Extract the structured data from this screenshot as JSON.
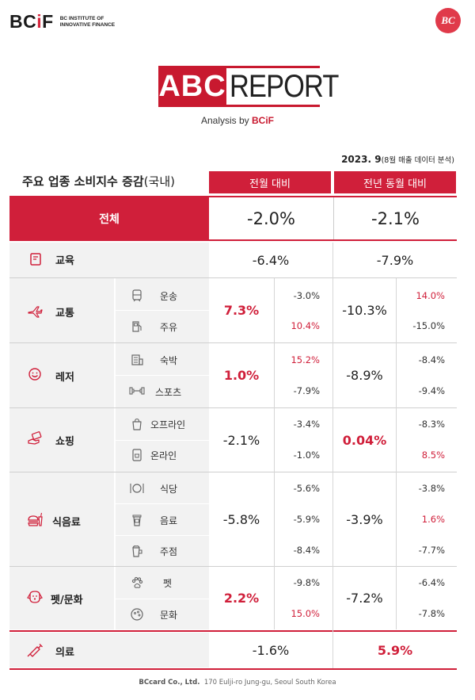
{
  "header": {
    "brand_main": "BC",
    "brand_i": "i",
    "brand_f": "F",
    "brand_sub": "BC INSTITUTE OF INNOVATIVE FINANCE",
    "bc_logo": "BC",
    "report_abc": "ABC",
    "report_word": "REPORT",
    "analysis_prefix": "Analysis by ",
    "analysis_bc": "BCiF"
  },
  "date": {
    "main": "2023. 9",
    "note": "(8월 매출 데이터 분석)"
  },
  "table": {
    "title": "주요 업종 소비지수 증감",
    "title_paren": "(국내)",
    "col1": "전월 대비",
    "col2": "전년 동월 대비",
    "total": {
      "label": "전체",
      "mom": "-2.0%",
      "yoy": "-2.1%"
    },
    "education": {
      "label": "교육",
      "mom": "-6.4%",
      "yoy": "-7.9%"
    },
    "transport": {
      "label": "교통",
      "mom": "7.3%",
      "yoy": "-10.3%",
      "subs": [
        {
          "name": "운송",
          "mom": "-3.0%",
          "yoy": "14.0%"
        },
        {
          "name": "주유",
          "mom": "10.4%",
          "yoy": "-15.0%"
        }
      ]
    },
    "leisure": {
      "label": "레저",
      "mom": "1.0%",
      "yoy": "-8.9%",
      "subs": [
        {
          "name": "숙박",
          "mom": "15.2%",
          "yoy": "-8.4%"
        },
        {
          "name": "스포츠",
          "mom": "-7.9%",
          "yoy": "-9.4%"
        }
      ]
    },
    "shopping": {
      "label": "쇼핑",
      "mom": "-2.1%",
      "yoy": "0.04%",
      "subs": [
        {
          "name": "오프라인",
          "mom": "-3.4%",
          "yoy": "-8.3%"
        },
        {
          "name": "온라인",
          "mom": "-1.0%",
          "yoy": "8.5%"
        }
      ]
    },
    "food": {
      "label": "식음료",
      "mom": "-5.8%",
      "yoy": "-3.9%",
      "subs": [
        {
          "name": "식당",
          "mom": "-5.6%",
          "yoy": "-3.8%"
        },
        {
          "name": "음료",
          "mom": "-5.9%",
          "yoy": "1.6%"
        },
        {
          "name": "주점",
          "mom": "-8.4%",
          "yoy": "-7.7%"
        }
      ]
    },
    "pet": {
      "label": "펫/문화",
      "mom": "2.2%",
      "yoy": "-7.2%",
      "subs": [
        {
          "name": "펫",
          "mom": "-9.8%",
          "yoy": "-6.4%"
        },
        {
          "name": "문화",
          "mom": "15.0%",
          "yoy": "-7.8%"
        }
      ]
    },
    "medical": {
      "label": "의료",
      "mom": "-1.6%",
      "yoy": "5.9%"
    }
  },
  "footer": {
    "company": "BCcard Co., Ltd.",
    "address": "170 Eulji-ro Jung-gu, Seoul South Korea"
  },
  "colors": {
    "accent": "#d01f3a",
    "row_bg": "#f2f2f2"
  }
}
